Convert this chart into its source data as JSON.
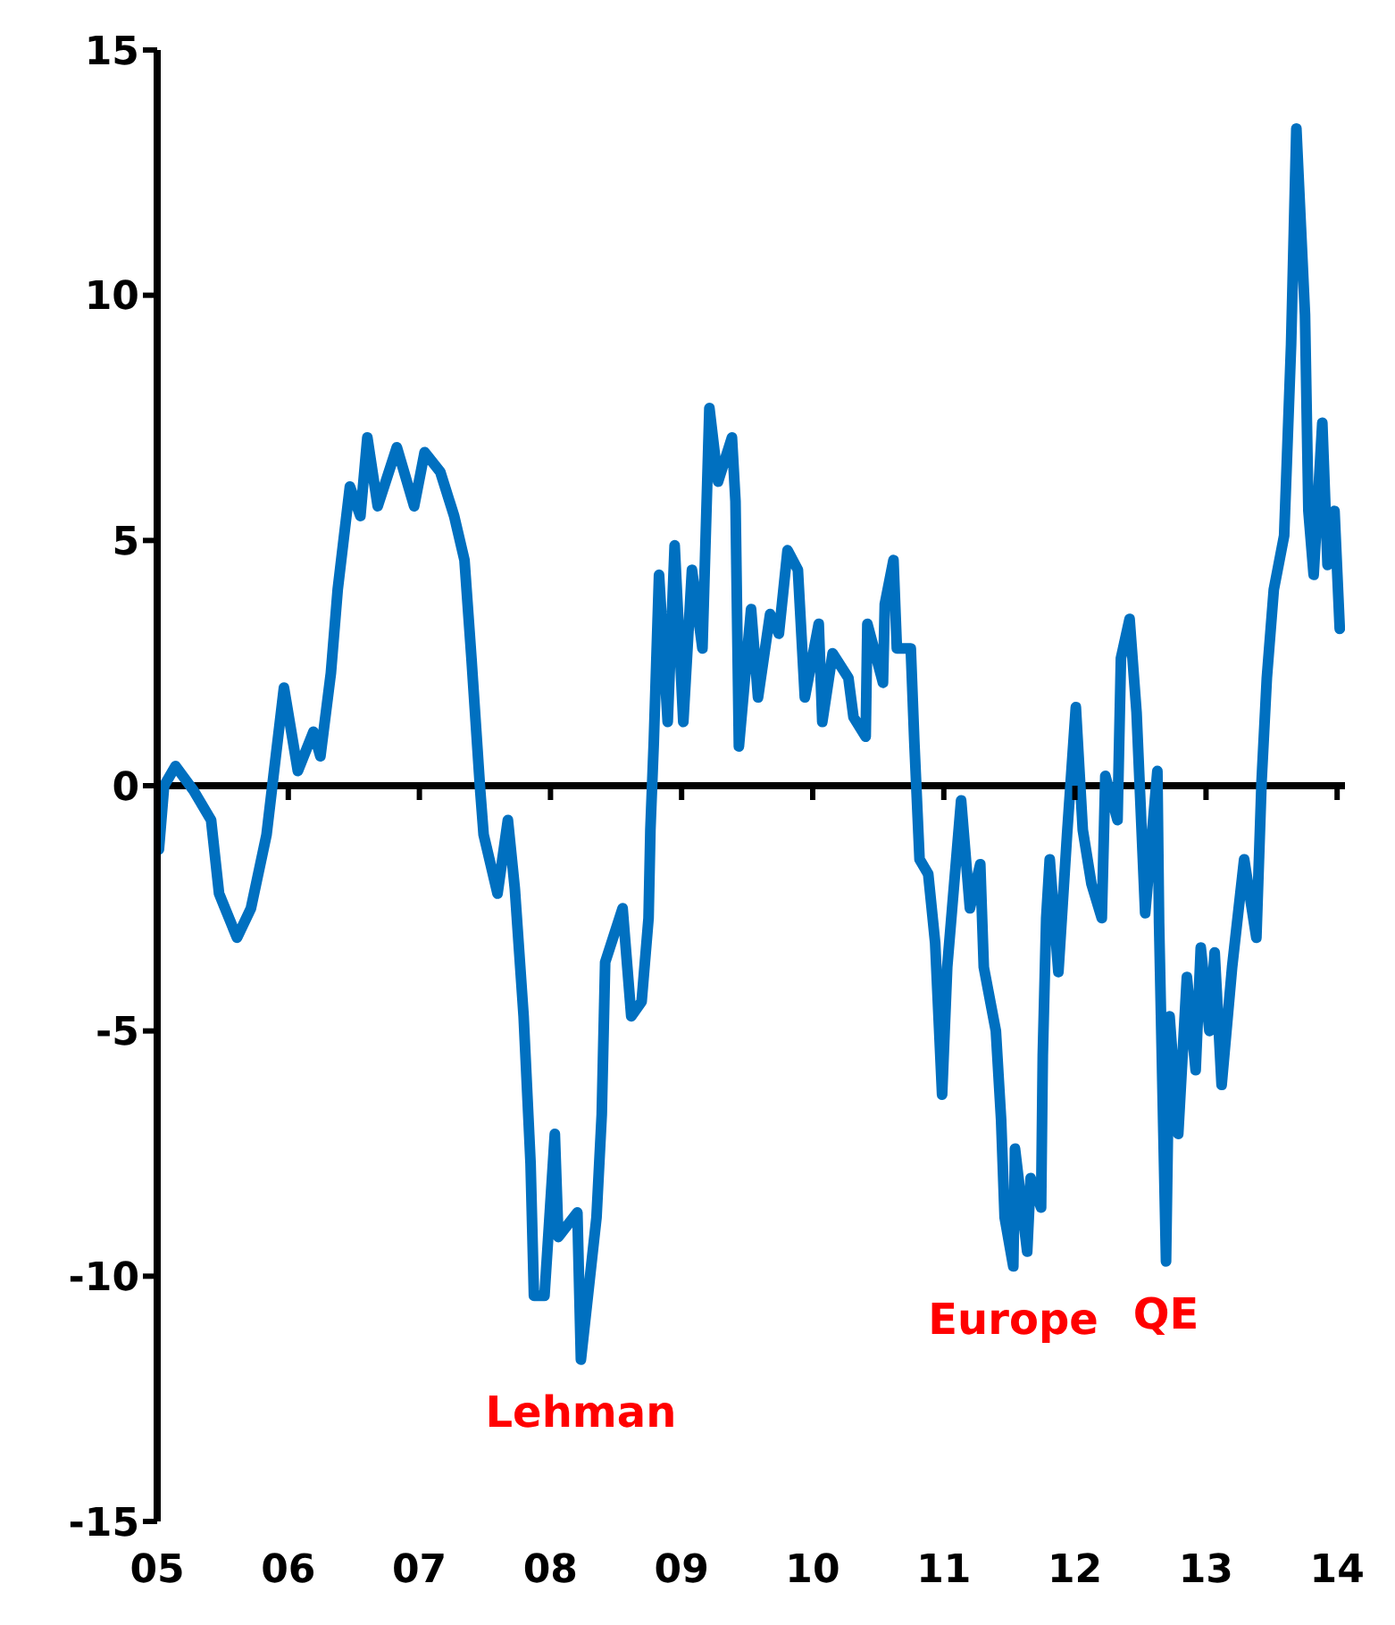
{
  "chart_data": {
    "type": "line",
    "x": [
      2005.013,
      2005.053,
      2005.14,
      2005.278,
      2005.411,
      2005.472,
      2005.609,
      2005.715,
      2005.834,
      2005.887,
      2005.967,
      2006.073,
      2006.192,
      2006.245,
      2006.325,
      2006.377,
      2006.47,
      2006.55,
      2006.603,
      2006.682,
      2006.828,
      2006.96,
      2007.04,
      2007.159,
      2007.265,
      2007.344,
      2007.397,
      2007.464,
      2007.49,
      2007.596,
      2007.675,
      2007.728,
      2007.795,
      2007.848,
      2007.874,
      2007.954,
      2008.033,
      2008.06,
      2008.205,
      2008.232,
      2008.351,
      2008.391,
      2008.417,
      2008.55,
      2008.616,
      2008.695,
      2008.748,
      2008.762,
      2008.788,
      2008.828,
      2008.894,
      2008.947,
      2009.013,
      2009.079,
      2009.159,
      2009.212,
      2009.278,
      2009.384,
      2009.411,
      2009.437,
      2009.53,
      2009.583,
      2009.675,
      2009.742,
      2009.808,
      2009.887,
      2009.94,
      2010.046,
      2010.073,
      2010.152,
      2010.272,
      2010.311,
      2010.404,
      2010.417,
      2010.536,
      2010.55,
      2010.616,
      2010.642,
      2010.748,
      2010.775,
      2010.815,
      2010.881,
      2010.934,
      2010.987,
      2011.026,
      2011.132,
      2011.199,
      2011.278,
      2011.305,
      2011.397,
      2011.437,
      2011.464,
      2011.53,
      2011.543,
      2011.636,
      2011.662,
      2011.742,
      2011.755,
      2011.781,
      2011.808,
      2011.874,
      2011.94,
      2012.007,
      2012.06,
      2012.126,
      2012.205,
      2012.232,
      2012.325,
      2012.351,
      2012.417,
      2012.47,
      2012.536,
      2012.629,
      2012.642,
      2012.695,
      2012.722,
      2012.788,
      2012.854,
      2012.921,
      2012.96,
      2013.026,
      2013.066,
      2013.119,
      2013.199,
      2013.291,
      2013.384,
      2013.424,
      2013.464,
      2013.517,
      2013.596,
      2013.649,
      2013.689,
      2013.755,
      2013.781,
      2013.821,
      2013.887,
      2013.927,
      2013.98,
      2014.02
    ],
    "series": [
      {
        "color": "#0070c0",
        "values": [
          -1.3,
          0.0,
          0.4,
          -0.1,
          -0.7,
          -2.2,
          -3.1,
          -2.5,
          -1.0,
          0.2,
          2.0,
          0.3,
          1.1,
          0.6,
          2.3,
          4.0,
          6.1,
          5.5,
          7.1,
          5.7,
          6.9,
          5.7,
          6.8,
          6.4,
          5.5,
          4.6,
          2.6,
          -0.1,
          -1.0,
          -2.2,
          -0.7,
          -2.1,
          -4.7,
          -7.7,
          -10.4,
          -10.4,
          -7.1,
          -9.2,
          -8.7,
          -11.7,
          -8.8,
          -6.7,
          -3.6,
          -2.5,
          -4.7,
          -4.4,
          -2.7,
          -0.9,
          0.9,
          4.3,
          1.3,
          4.9,
          1.3,
          4.4,
          2.8,
          7.7,
          6.2,
          7.1,
          5.8,
          0.8,
          3.6,
          1.8,
          3.5,
          3.1,
          4.8,
          4.4,
          1.8,
          3.3,
          1.3,
          2.7,
          2.2,
          1.4,
          1.0,
          3.3,
          2.1,
          3.7,
          4.6,
          2.8,
          2.8,
          0.9,
          -1.5,
          -1.8,
          -3.2,
          -6.3,
          -3.7,
          -0.3,
          -2.5,
          -1.6,
          -3.7,
          -5.0,
          -6.8,
          -8.8,
          -9.8,
          -7.4,
          -9.5,
          -8.0,
          -8.6,
          -5.5,
          -2.7,
          -1.5,
          -3.8,
          -1.0,
          1.6,
          -0.9,
          -2.0,
          -2.7,
          0.2,
          -0.7,
          2.6,
          3.4,
          1.5,
          -2.6,
          0.3,
          -2.8,
          -9.7,
          -4.7,
          -7.1,
          -3.9,
          -5.8,
          -3.3,
          -5.0,
          -3.4,
          -6.1,
          -3.7,
          -1.5,
          -3.1,
          0.1,
          2.2,
          4.0,
          5.1,
          9.0,
          13.4,
          9.6,
          5.6,
          4.3,
          7.4,
          4.5,
          5.6,
          3.2
        ]
      }
    ],
    "xlim": [
      2005,
      2014.06
    ],
    "xticks": [
      {
        "value": 2005,
        "label": "05"
      },
      {
        "value": 2006,
        "label": "06"
      },
      {
        "value": 2007,
        "label": "07"
      },
      {
        "value": 2008,
        "label": "08"
      },
      {
        "value": 2009,
        "label": "09"
      },
      {
        "value": 2010,
        "label": "10"
      },
      {
        "value": 2011,
        "label": "11"
      },
      {
        "value": 2012,
        "label": "12"
      },
      {
        "value": 2013,
        "label": "13"
      },
      {
        "value": 2014,
        "label": "14"
      }
    ],
    "ylim": [
      -15,
      15
    ],
    "yticks": [
      -15,
      -10,
      -5,
      0,
      5,
      10,
      15
    ],
    "ref_lines": [
      {
        "axis": "y",
        "value": 0,
        "color": "#000000"
      }
    ],
    "grid": false,
    "legend": false,
    "marker": "none",
    "line_style": "solid",
    "annotations": [
      {
        "text": "Lehman",
        "x": 2008.232,
        "y": -11.7
      },
      {
        "text": "Europe",
        "x": 2011.53,
        "y": -9.8
      },
      {
        "text": "QE",
        "x": 2012.695,
        "y": -9.7
      }
    ]
  }
}
